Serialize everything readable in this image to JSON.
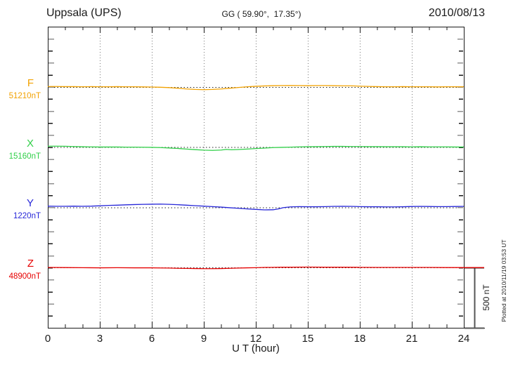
{
  "header": {
    "station": "Uppsala (UPS)",
    "coords": "GG ( 59.90°,  17.35°)",
    "date": "2010/08/13"
  },
  "axis": {
    "xlabel": "U T (hour)"
  },
  "scale_bar": {
    "label": "500 nT",
    "span_nT": 500
  },
  "footnote": {
    "plotted_at": "Plotted at 2010/11/19 03:53 UT"
  },
  "colors": {
    "frame": "#1a1a1a",
    "grid": "#777777",
    "baseline_dots": "#222222",
    "scale_bar": "#555555"
  },
  "chart_data": {
    "type": "line",
    "title": "Uppsala (UPS) magnetogram",
    "date": "2010/08/13",
    "xlabel": "U T (hour)",
    "x_range": [
      0,
      24
    ],
    "x_major_ticks": [
      0,
      3,
      6,
      9,
      12,
      15,
      18,
      21,
      24
    ],
    "x_tick_labels": [
      "0",
      "3",
      "6",
      "9",
      "12",
      "15",
      "18",
      "21",
      "24"
    ],
    "x_minor_step_hours": 1,
    "grid": "vertical dotted lines every 3 hours",
    "y_tick_step_nT": 100,
    "y_span_ticks": 25,
    "trace_spacing_nT": 500,
    "scale_bar_nT": 500,
    "units": "points are [hour UT, deviation in nT from the quiet-level baseline]",
    "series": [
      {
        "name": "F",
        "baseline_label": "51210nT",
        "baseline_nT": 51210,
        "color": "#f2a202",
        "offset_ticks": 5,
        "points": [
          [
            0,
            3
          ],
          [
            0.5,
            3
          ],
          [
            1,
            2
          ],
          [
            1.5,
            2
          ],
          [
            2,
            1
          ],
          [
            2.5,
            2
          ],
          [
            3,
            1
          ],
          [
            3.5,
            1
          ],
          [
            4,
            2
          ],
          [
            4.5,
            1
          ],
          [
            5,
            1
          ],
          [
            5.5,
            0
          ],
          [
            6,
            -1
          ],
          [
            6.5,
            -3
          ],
          [
            7,
            -6
          ],
          [
            7.5,
            -11
          ],
          [
            8,
            -17
          ],
          [
            8.5,
            -21
          ],
          [
            9,
            -23
          ],
          [
            9.5,
            -21
          ],
          [
            10,
            -17
          ],
          [
            10.5,
            -11
          ],
          [
            11,
            -5
          ],
          [
            11.5,
            1
          ],
          [
            12,
            5
          ],
          [
            12.5,
            8
          ],
          [
            13,
            10
          ],
          [
            13.5,
            11
          ],
          [
            14,
            12
          ],
          [
            14.5,
            11
          ],
          [
            15,
            10
          ],
          [
            15.5,
            11
          ],
          [
            16,
            11
          ],
          [
            16.5,
            10
          ],
          [
            17,
            9
          ],
          [
            17.5,
            9
          ],
          [
            18,
            6
          ],
          [
            18.5,
            4
          ],
          [
            19,
            2
          ],
          [
            19.5,
            1
          ],
          [
            20,
            1
          ],
          [
            20.5,
            2
          ],
          [
            21,
            1
          ],
          [
            21.5,
            1
          ],
          [
            22,
            1
          ],
          [
            22.5,
            0
          ],
          [
            23,
            1
          ],
          [
            23.5,
            1
          ],
          [
            24,
            1
          ]
        ]
      },
      {
        "name": "X",
        "baseline_label": "15160nT",
        "baseline_nT": 15160,
        "color": "#30cf48",
        "offset_ticks": 10,
        "points": [
          [
            0,
            8
          ],
          [
            0.5,
            8
          ],
          [
            1,
            7
          ],
          [
            1.5,
            5
          ],
          [
            2,
            3
          ],
          [
            2.5,
            2
          ],
          [
            3,
            1
          ],
          [
            3.5,
            1
          ],
          [
            4,
            1
          ],
          [
            4.5,
            0
          ],
          [
            5,
            0
          ],
          [
            5.5,
            -1
          ],
          [
            6,
            -2
          ],
          [
            6.5,
            -4
          ],
          [
            7,
            -7
          ],
          [
            7.5,
            -11
          ],
          [
            8,
            -16
          ],
          [
            8.5,
            -21
          ],
          [
            9,
            -25
          ],
          [
            9.5,
            -27
          ],
          [
            10,
            -24
          ],
          [
            10.3,
            -19
          ],
          [
            10.6,
            -22
          ],
          [
            11,
            -20
          ],
          [
            11.5,
            -16
          ],
          [
            12,
            -12
          ],
          [
            12.5,
            -8
          ],
          [
            13,
            -4
          ],
          [
            13.5,
            -2
          ],
          [
            14,
            0
          ],
          [
            14.5,
            2
          ],
          [
            15,
            3
          ],
          [
            15.5,
            4
          ],
          [
            16,
            5
          ],
          [
            16.5,
            6
          ],
          [
            17,
            6
          ],
          [
            17.5,
            5
          ],
          [
            18,
            5
          ],
          [
            18.5,
            4
          ],
          [
            19,
            4
          ],
          [
            19.5,
            3
          ],
          [
            20,
            3
          ],
          [
            20.5,
            3
          ],
          [
            21,
            2
          ],
          [
            21.5,
            3
          ],
          [
            22,
            2
          ],
          [
            22.5,
            2
          ],
          [
            23,
            2
          ],
          [
            23.5,
            1
          ],
          [
            24,
            1
          ]
        ]
      },
      {
        "name": "Y",
        "baseline_label": "1220nT",
        "baseline_nT": 1220,
        "color": "#2626d8",
        "offset_ticks": 15,
        "points": [
          [
            0,
            10
          ],
          [
            0.5,
            9
          ],
          [
            1,
            9
          ],
          [
            1.5,
            10
          ],
          [
            2,
            9
          ],
          [
            2.5,
            10
          ],
          [
            3,
            13
          ],
          [
            3.5,
            16
          ],
          [
            4,
            18
          ],
          [
            4.5,
            21
          ],
          [
            5,
            23
          ],
          [
            5.5,
            25
          ],
          [
            6,
            26
          ],
          [
            6.5,
            27
          ],
          [
            7,
            25
          ],
          [
            7.5,
            22
          ],
          [
            8,
            18
          ],
          [
            8.5,
            14
          ],
          [
            9,
            10
          ],
          [
            9.5,
            6
          ],
          [
            10,
            2
          ],
          [
            10.5,
            -3
          ],
          [
            11,
            -8
          ],
          [
            11.5,
            -13
          ],
          [
            12,
            -17
          ],
          [
            12.5,
            -21
          ],
          [
            13,
            -20
          ],
          [
            13.3,
            -13
          ],
          [
            13.6,
            -2
          ],
          [
            14,
            4
          ],
          [
            14.5,
            6
          ],
          [
            15,
            5
          ],
          [
            15.5,
            5
          ],
          [
            16,
            6
          ],
          [
            16.5,
            8
          ],
          [
            17,
            9
          ],
          [
            17.5,
            8
          ],
          [
            18,
            6
          ],
          [
            18.5,
            5
          ],
          [
            19,
            5
          ],
          [
            19.5,
            4
          ],
          [
            20,
            4
          ],
          [
            20.5,
            5
          ],
          [
            21,
            7
          ],
          [
            21.5,
            8
          ],
          [
            22,
            7
          ],
          [
            22.5,
            6
          ],
          [
            23,
            6
          ],
          [
            23.5,
            7
          ],
          [
            24,
            8
          ]
        ]
      },
      {
        "name": "Z",
        "baseline_label": "48900nT",
        "baseline_nT": 48900,
        "color": "#e60000",
        "offset_ticks": 20,
        "extend_right": true,
        "points": [
          [
            0,
            1
          ],
          [
            1,
            0
          ],
          [
            2,
            -1
          ],
          [
            3,
            -2
          ],
          [
            4,
            -1
          ],
          [
            5,
            -2
          ],
          [
            6,
            -2
          ],
          [
            6.5,
            -3
          ],
          [
            7,
            -4
          ],
          [
            7.5,
            -6
          ],
          [
            8,
            -7
          ],
          [
            8.5,
            -8
          ],
          [
            9,
            -9
          ],
          [
            9.5,
            -9
          ],
          [
            10,
            -8
          ],
          [
            10.5,
            -6
          ],
          [
            11,
            -4
          ],
          [
            11.5,
            -2
          ],
          [
            12,
            -1
          ],
          [
            12.5,
            1
          ],
          [
            13,
            2
          ],
          [
            13.5,
            3
          ],
          [
            14,
            3
          ],
          [
            15,
            4
          ],
          [
            16,
            3
          ],
          [
            17,
            3
          ],
          [
            18,
            2
          ],
          [
            19,
            1
          ],
          [
            20,
            1
          ],
          [
            21,
            1
          ],
          [
            22,
            1
          ],
          [
            23,
            0
          ],
          [
            24,
            0
          ]
        ]
      }
    ]
  }
}
